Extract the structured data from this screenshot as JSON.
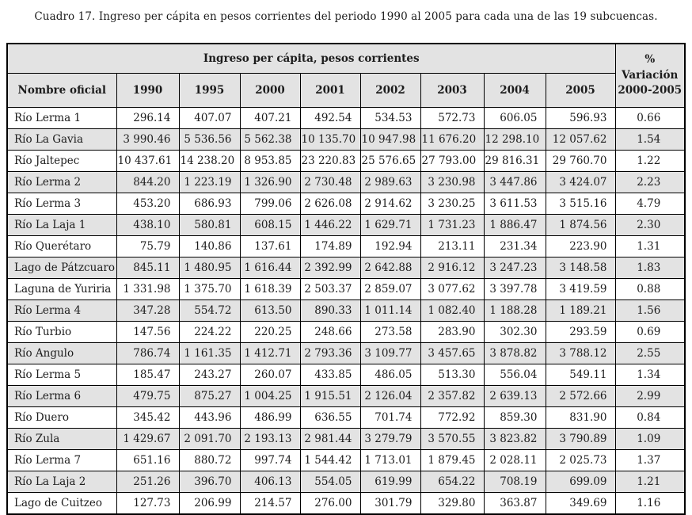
{
  "title": "Cuadro 17. Ingreso per cápita en pesos corrientes del periodo 1990 al 2005 para cada una de las 19 subcuencas.",
  "table": {
    "group_header": "Ingreso per cápita, pesos corrientes",
    "variation_header": {
      "line1": "%",
      "line2": "Variación",
      "line3": "2000-2005"
    },
    "name_header": "Nombre oficial",
    "year_headers": [
      "1990",
      "1995",
      "2000",
      "2001",
      "2002",
      "2003",
      "2004",
      "2005"
    ],
    "rows": [
      {
        "name": "Río Lerma 1",
        "values": [
          "296.14",
          "407.07",
          "407.21",
          "492.54",
          "534.53",
          "572.73",
          "606.05",
          "596.93"
        ],
        "variation": "0.66"
      },
      {
        "name": "Río La Gavia",
        "values": [
          "3 990.46",
          "5 536.56",
          "5 562.38",
          "10 135.70",
          "10 947.98",
          "11 676.20",
          "12 298.10",
          "12 057.62"
        ],
        "variation": "1.54"
      },
      {
        "name": "Río Jaltepec",
        "values": [
          "10 437.61",
          "14 238.20",
          "8 953.85",
          "23 220.83",
          "25 576.65",
          "27 793.00",
          "29 816.31",
          "29 760.70"
        ],
        "variation": "1.22"
      },
      {
        "name": "Río Lerma 2",
        "values": [
          "844.20",
          "1 223.19",
          "1 326.90",
          "2 730.48",
          "2 989.63",
          "3 230.98",
          "3 447.86",
          "3 424.07"
        ],
        "variation": "2.23"
      },
      {
        "name": "Río Lerma 3",
        "values": [
          "453.20",
          "686.93",
          "799.06",
          "2 626.08",
          "2 914.62",
          "3 230.25",
          "3 611.53",
          "3 515.16"
        ],
        "variation": "4.79"
      },
      {
        "name": "Río La Laja 1",
        "values": [
          "438.10",
          "580.81",
          "608.15",
          "1 446.22",
          "1 629.71",
          "1 731.23",
          "1 886.47",
          "1 874.56"
        ],
        "variation": "2.30"
      },
      {
        "name": "Río Querétaro",
        "values": [
          "75.79",
          "140.86",
          "137.61",
          "174.89",
          "192.94",
          "213.11",
          "231.34",
          "223.90"
        ],
        "variation": "1.31"
      },
      {
        "name": "Lago de Pátzcuaro",
        "values": [
          "845.11",
          "1 480.95",
          "1 616.44",
          "2 392.99",
          "2 642.88",
          "2 916.12",
          "3 247.23",
          "3 148.58"
        ],
        "variation": "1.83"
      },
      {
        "name": "Laguna de Yuriria",
        "values": [
          "1 331.98",
          "1 375.70",
          "1 618.39",
          "2 503.37",
          "2 859.07",
          "3 077.62",
          "3 397.78",
          "3 419.59"
        ],
        "variation": "0.88"
      },
      {
        "name": "Río Lerma 4",
        "values": [
          "347.28",
          "554.72",
          "613.50",
          "890.33",
          "1 011.14",
          "1 082.40",
          "1 188.28",
          "1 189.21"
        ],
        "variation": "1.56"
      },
      {
        "name": "Río Turbio",
        "values": [
          "147.56",
          "224.22",
          "220.25",
          "248.66",
          "273.58",
          "283.90",
          "302.30",
          "293.59"
        ],
        "variation": "0.69"
      },
      {
        "name": "Río Angulo",
        "values": [
          "786.74",
          "1 161.35",
          "1 412.71",
          "2 793.36",
          "3 109.77",
          "3 457.65",
          "3 878.82",
          "3 788.12"
        ],
        "variation": "2.55"
      },
      {
        "name": "Río Lerma 5",
        "values": [
          "185.47",
          "243.27",
          "260.07",
          "433.85",
          "486.05",
          "513.30",
          "556.04",
          "549.11"
        ],
        "variation": "1.34"
      },
      {
        "name": "Río Lerma 6",
        "values": [
          "479.75",
          "875.27",
          "1 004.25",
          "1 915.51",
          "2 126.04",
          "2 357.82",
          "2 639.13",
          "2 572.66"
        ],
        "variation": "2.99"
      },
      {
        "name": "Río Duero",
        "values": [
          "345.42",
          "443.96",
          "486.99",
          "636.55",
          "701.74",
          "772.92",
          "859.30",
          "831.90"
        ],
        "variation": "0.84"
      },
      {
        "name": "Río Zula",
        "values": [
          "1 429.67",
          "2 091.70",
          "2 193.13",
          "2 981.44",
          "3 279.79",
          "3 570.55",
          "3 823.82",
          "3 790.89"
        ],
        "variation": "1.09"
      },
      {
        "name": "Río Lerma 7",
        "values": [
          "651.16",
          "880.72",
          "997.74",
          "1 544.42",
          "1 713.01",
          "1 879.45",
          "2 028.11",
          "2 025.73"
        ],
        "variation": "1.37"
      },
      {
        "name": "Río La Laja 2",
        "values": [
          "251.26",
          "396.70",
          "406.13",
          "554.05",
          "619.99",
          "654.22",
          "708.19",
          "699.09"
        ],
        "variation": "1.21"
      },
      {
        "name": "Lago de Cuitzeo",
        "values": [
          "127.73",
          "206.99",
          "214.57",
          "276.00",
          "301.79",
          "329.80",
          "363.87",
          "349.69"
        ],
        "variation": "1.16"
      }
    ]
  },
  "colors": {
    "header_bg": "#e3e3e3",
    "stripe_bg": "#e3e3e3",
    "border": "#000000",
    "text": "#1c1c1c"
  }
}
